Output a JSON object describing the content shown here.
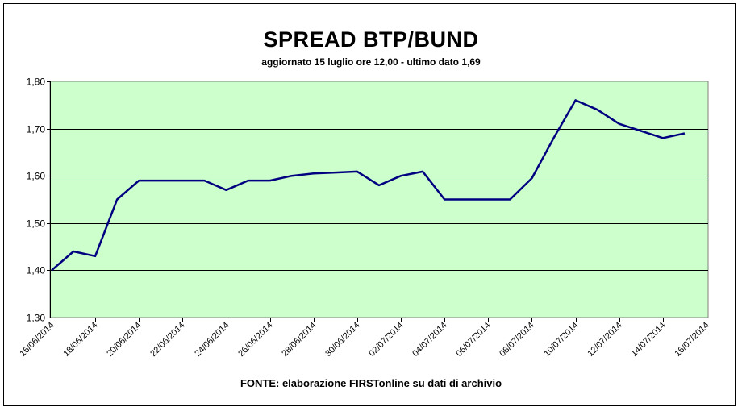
{
  "chart_data": {
    "type": "line",
    "title": "SPREAD BTP/BUND",
    "subtitle": "aggiornato 15 luglio ore 12,00 - ultimo dato 1,69",
    "source": "FONTE:  elaborazione FIRSTonline su dati di archivio",
    "xlabel": "",
    "ylabel": "",
    "ylim": [
      1.3,
      1.8
    ],
    "y_ticks": [
      "1,30",
      "1,40",
      "1,50",
      "1,60",
      "1,70",
      "1,80"
    ],
    "x_tick_labels": [
      "16/06/2014",
      "18/06/2014",
      "20/06/2014",
      "22/06/2014",
      "24/06/2014",
      "26/06/2014",
      "28/06/2014",
      "30/06/2014",
      "02/07/2014",
      "04/07/2014",
      "06/07/2014",
      "08/07/2014",
      "10/07/2014",
      "12/07/2014",
      "14/07/2014",
      "16/07/2014"
    ],
    "grid": true,
    "plot_background": "#CCFFCC",
    "line_color": "#000080",
    "series": [
      {
        "values": [
          1.4,
          1.44,
          1.43,
          1.55,
          1.59,
          1.59,
          1.59,
          1.59,
          1.57,
          1.59,
          1.59,
          1.6,
          1.605,
          1.607,
          1.609,
          1.58,
          1.6,
          1.609,
          1.55,
          1.55,
          1.55,
          1.55,
          1.595,
          1.68,
          1.76,
          1.74,
          1.71,
          1.68,
          1.69
        ],
        "x_index": [
          0,
          1,
          2,
          3,
          4,
          5,
          6,
          7,
          8,
          9,
          10,
          11,
          12,
          13,
          14,
          15,
          16,
          17,
          18,
          19,
          20,
          21,
          22,
          23,
          24,
          25,
          26,
          28,
          29
        ]
      }
    ]
  }
}
